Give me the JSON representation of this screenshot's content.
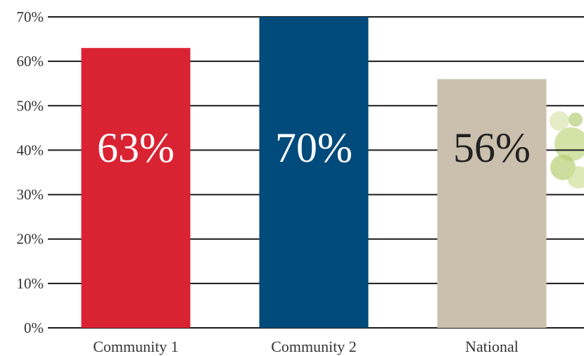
{
  "chart_data": {
    "type": "bar",
    "categories": [
      "Community 1",
      "Community 2",
      "National"
    ],
    "values": [
      63,
      70,
      56
    ],
    "data_labels": [
      "63%",
      "70%",
      "56%"
    ],
    "y_ticks": [
      0,
      10,
      20,
      30,
      40,
      50,
      60,
      70
    ],
    "y_tick_labels": [
      "0%",
      "10%",
      "20%",
      "30%",
      "40%",
      "50%",
      "60%",
      "70%"
    ],
    "ylim": [
      0,
      70
    ],
    "title": "",
    "xlabel": "",
    "ylabel": "",
    "grid": true,
    "colors": [
      "#d92332",
      "#004a7c",
      "#cbc0ad"
    ],
    "label_colors": [
      "#ffffff",
      "#ffffff",
      "#222222"
    ]
  }
}
